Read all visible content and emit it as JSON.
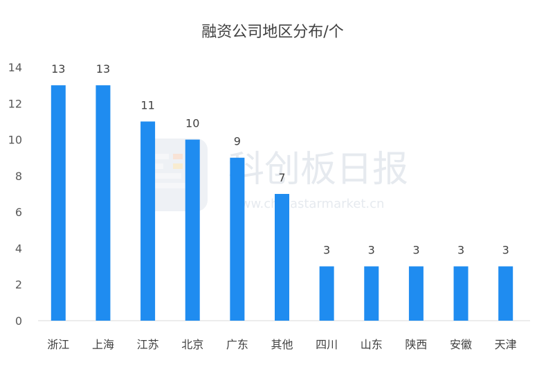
{
  "chart_data": {
    "type": "bar",
    "title": "融资公司地区分布/个",
    "categories": [
      "浙江",
      "上海",
      "江苏",
      "北京",
      "广东",
      "其他",
      "四川",
      "山东",
      "陕西",
      "安徽",
      "天津"
    ],
    "values": [
      13,
      13,
      11,
      10,
      9,
      7,
      3,
      3,
      3,
      3,
      3
    ],
    "ylim": [
      0,
      14
    ],
    "yticks": [
      0,
      2,
      4,
      6,
      8,
      10,
      12,
      14
    ],
    "grid": false,
    "data_labels": true,
    "bar_color": "#1f8cf0"
  },
  "watermark": {
    "name": "科创板日报",
    "url": "www.chinastarmarket.cn"
  }
}
